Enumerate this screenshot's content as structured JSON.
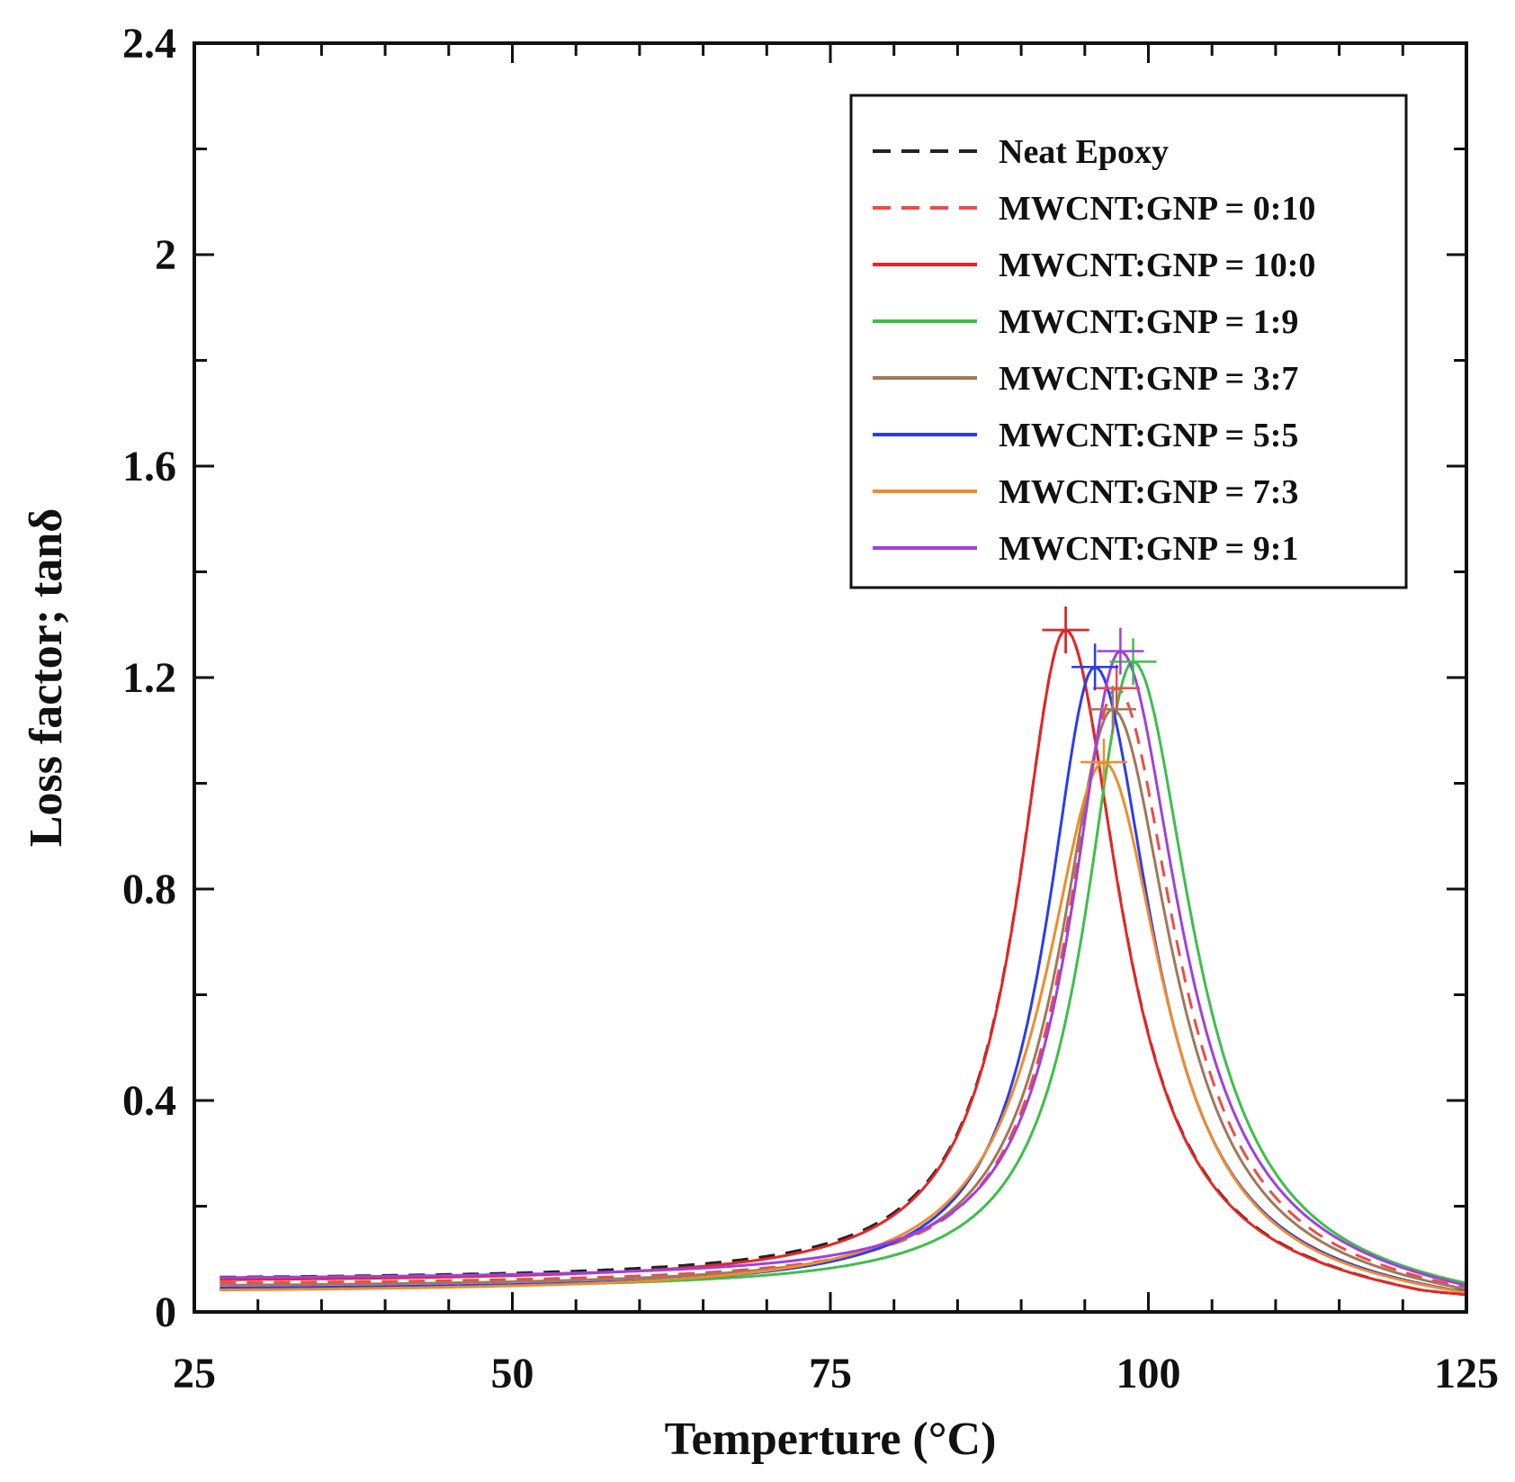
{
  "chart_data": {
    "type": "line",
    "title": "",
    "xlabel": "Temperture (°C)",
    "ylabel": "Loss factor; tanδ",
    "xlim": [
      25,
      125
    ],
    "ylim": [
      0,
      2.4
    ],
    "xticks": [
      25,
      50,
      75,
      100,
      125
    ],
    "xtick_labels": [
      "25",
      "50",
      "75",
      "100",
      "125"
    ],
    "yticks": [
      0,
      0.4,
      0.8,
      1.2,
      1.6,
      2,
      2.4
    ],
    "ytick_labels": [
      "0",
      "0.4",
      "0.8",
      "1.2",
      "1.6",
      "2",
      "2.4"
    ],
    "legend_position": "top-right",
    "series": [
      {
        "name": "Neat Epoxy",
        "color": "#222222",
        "dash": true,
        "peak_x": 93.5,
        "peak_y": 1.29,
        "base": 0.06,
        "width_left": 4.6,
        "width_right": 5.2
      },
      {
        "name": "MWCNT:GNP = 0:10",
        "color": "#ef4a4a",
        "dash": true,
        "peak_x": 97.5,
        "peak_y": 1.18,
        "base": 0.05,
        "width_left": 4.8,
        "width_right": 5.6
      },
      {
        "name": "MWCNT:GNP = 10:0",
        "color": "#e82424",
        "dash": false,
        "peak_x": 93.5,
        "peak_y": 1.29,
        "base": 0.055,
        "width_left": 4.6,
        "width_right": 5.2
      },
      {
        "name": "MWCNT:GNP = 1:9",
        "color": "#3cbf4a",
        "dash": false,
        "peak_x": 98.8,
        "peak_y": 1.23,
        "base": 0.04,
        "width_left": 4.6,
        "width_right": 5.6
      },
      {
        "name": "MWCNT:GNP = 3:7",
        "color": "#a0785a",
        "dash": false,
        "peak_x": 97.2,
        "peak_y": 1.14,
        "base": 0.045,
        "width_left": 5.0,
        "width_right": 5.6
      },
      {
        "name": "MWCNT:GNP = 5:5",
        "color": "#2a3cf0",
        "dash": false,
        "peak_x": 95.8,
        "peak_y": 1.22,
        "base": 0.04,
        "width_left": 4.6,
        "width_right": 5.4
      },
      {
        "name": "MWCNT:GNP = 7:3",
        "color": "#f08c2a",
        "dash": false,
        "peak_x": 96.5,
        "peak_y": 1.04,
        "base": 0.035,
        "width_left": 5.6,
        "width_right": 5.6
      },
      {
        "name": "MWCNT:GNP = 9:1",
        "color": "#a040e0",
        "dash": false,
        "peak_x": 97.8,
        "peak_y": 1.25,
        "base": 0.06,
        "width_left": 4.6,
        "width_right": 5.6
      }
    ]
  }
}
